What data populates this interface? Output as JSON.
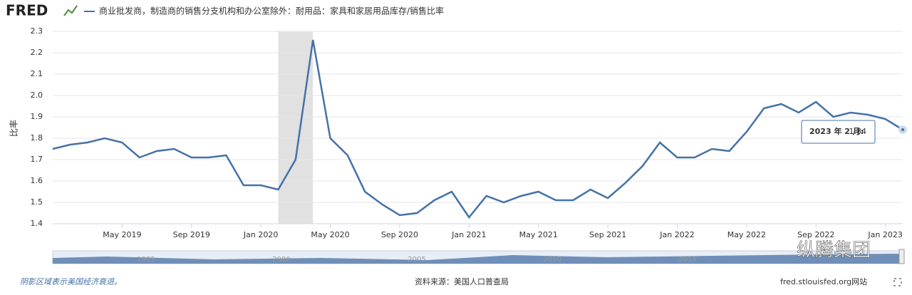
{
  "logo": "FRED",
  "chart_data": {
    "type": "line",
    "title": "商业批发商，制造商的销售分支机构和办公室除外：耐用品：家具和家居用品库存/销售比率",
    "y_label": "比率",
    "categories": [
      null,
      null,
      null,
      null,
      "May 2019",
      null,
      null,
      null,
      "Sep 2019",
      null,
      null,
      null,
      "Jan 2020",
      null,
      null,
      null,
      "May 2020",
      null,
      null,
      null,
      "Sep 2020",
      null,
      null,
      null,
      "Jan 2021",
      null,
      null,
      null,
      "May 2021",
      null,
      null,
      null,
      "Sep 2021",
      null,
      null,
      null,
      "Jan 2022",
      null,
      null,
      null,
      "May 2022",
      null,
      null,
      null,
      "Sep 2022",
      null,
      null,
      null,
      "Jan 2023",
      null
    ],
    "series": [
      {
        "name": "商业批发商，制造商的销售分支机构和办公室除外：耐用品：家具和家居用品库存/销售比率",
        "color": "#4572a7",
        "values": [
          1.75,
          1.77,
          1.78,
          1.8,
          1.78,
          1.71,
          1.74,
          1.75,
          1.71,
          1.71,
          1.72,
          1.58,
          1.58,
          1.56,
          1.7,
          2.26,
          1.8,
          1.72,
          1.55,
          1.49,
          1.44,
          1.45,
          1.51,
          1.55,
          1.43,
          1.53,
          1.5,
          1.53,
          1.55,
          1.51,
          1.51,
          1.56,
          1.52,
          1.59,
          1.67,
          1.78,
          1.71,
          1.71,
          1.75,
          1.74,
          1.83,
          1.94,
          1.96,
          1.92,
          1.97,
          1.9,
          1.92,
          1.91,
          1.89,
          1.84
        ]
      }
    ],
    "ylim": [
      1.4,
      2.3
    ],
    "yticks": [
      1.4,
      1.5,
      1.6,
      1.7,
      1.8,
      1.9,
      {
        "value": 2,
        "label": "2.0"
      },
      2.1,
      2.2,
      2.3
    ],
    "grid": true,
    "recessions": [
      [
        13,
        15
      ]
    ],
    "tooltip": {
      "label": "2023 年 2 月:",
      "index": 49
    }
  },
  "navigator": {
    "labels": [
      "1995",
      "2000",
      "2005",
      "2010",
      "2015"
    ]
  },
  "footer": {
    "note": "阴影区域表示美国经济衰退。",
    "source": "资料来源：美国人口普查局",
    "site": "fred.stlouisfed.org网站"
  },
  "watermark": "纵腾集团"
}
